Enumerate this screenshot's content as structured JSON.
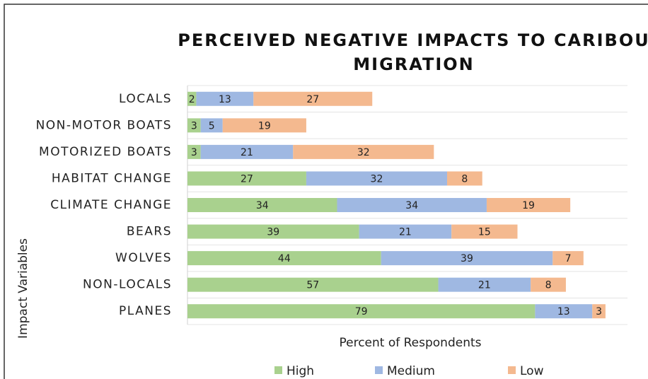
{
  "chart_data": {
    "type": "stacked-bar-horizontal",
    "title": "PERCEIVED NEGATIVE IMPACTS TO CARIBOU MIGRATION",
    "x_label": "Percent of Respondents",
    "y_label": "Impact Variables",
    "categories": [
      "LOCALS",
      "NON-MOTOR BOATS",
      "MOTORIZED BOATS",
      "HABITAT CHANGE",
      "CLIMATE CHANGE",
      "BEARS",
      "WOLVES",
      "NON-LOCALS",
      "PLANES"
    ],
    "series": [
      {
        "name": "High",
        "color": "#a9d18e",
        "values": [
          2,
          3,
          3,
          27,
          34,
          39,
          44,
          57,
          79
        ]
      },
      {
        "name": "Medium",
        "color": "#9fb8e2",
        "values": [
          13,
          5,
          21,
          32,
          34,
          21,
          39,
          21,
          13
        ]
      },
      {
        "name": "Low",
        "color": "#f4b98f",
        "values": [
          27,
          19,
          32,
          8,
          19,
          15,
          7,
          8,
          3
        ]
      }
    ],
    "xlim": [
      0,
      100
    ],
    "legend": "bottom"
  }
}
